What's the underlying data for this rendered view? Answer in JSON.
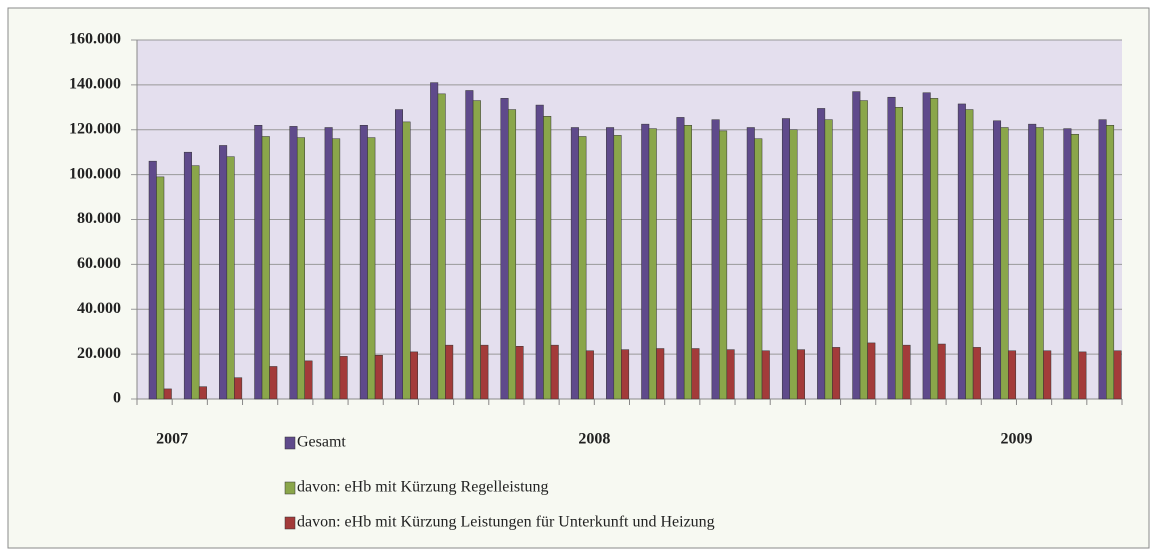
{
  "chart_data": {
    "type": "bar",
    "categories": [
      null,
      "2007",
      null,
      null,
      null,
      null,
      null,
      null,
      null,
      null,
      null,
      null,
      null,
      "2008",
      null,
      null,
      null,
      null,
      null,
      null,
      null,
      null,
      null,
      null,
      null,
      "2009",
      null,
      null
    ],
    "series": [
      {
        "name": "Gesamt",
        "color": "#5f4a8b",
        "values": [
          106000,
          110000,
          113000,
          122000,
          121500,
          121000,
          122000,
          129000,
          141000,
          137500,
          134000,
          131000,
          121000,
          121000,
          122500,
          125500,
          124500,
          121000,
          125000,
          129500,
          137000,
          134500,
          136500,
          131500,
          124000,
          122500,
          120500,
          124500
        ]
      },
      {
        "name": "davon: eHb mit Kürzung Regelleistung",
        "color": "#8aa64a",
        "values": [
          99000,
          104000,
          108000,
          117000,
          116500,
          116000,
          116500,
          123500,
          136000,
          133000,
          129000,
          126000,
          117000,
          117500,
          120500,
          122000,
          119500,
          116000,
          120000,
          124500,
          133000,
          130000,
          134000,
          129000,
          121000,
          121000,
          118000,
          122000
        ]
      },
      {
        "name": "davon: eHb mit Kürzung Leistungen für Unterkunft und Heizung",
        "color": "#a33b3a",
        "values": [
          4500,
          5500,
          9500,
          14500,
          17000,
          19000,
          19500,
          21000,
          24000,
          24000,
          23500,
          24000,
          21500,
          22000,
          22500,
          22500,
          22000,
          21500,
          22000,
          23000,
          25000,
          24000,
          24500,
          23000,
          21500,
          21500,
          21000,
          21500
        ]
      }
    ],
    "ylim": [
      0,
      160000
    ],
    "yticks": [
      0,
      {
        "value": 20000,
        "label": "20.000"
      },
      {
        "value": 40000,
        "label": "40.000"
      },
      {
        "value": 60000,
        "label": "60.000"
      },
      {
        "value": 80000,
        "label": "80.000"
      },
      {
        "value": 100000,
        "label": "100.000"
      },
      {
        "value": 120000,
        "label": "120.000"
      },
      {
        "value": 140000,
        "label": "140.000"
      },
      {
        "value": 160000,
        "label": "160.000"
      }
    ],
    "grid": true
  }
}
